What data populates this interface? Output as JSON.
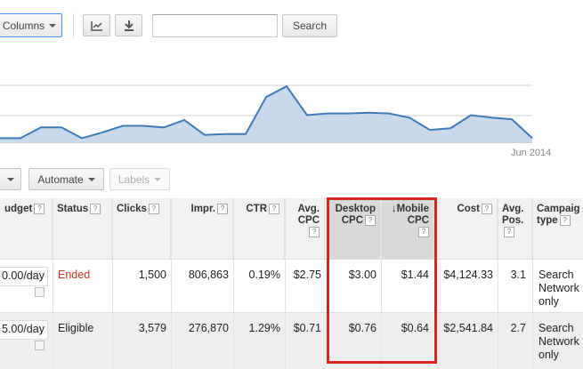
{
  "toolbar": {
    "columns_label": "Columns",
    "search_placeholder": "",
    "search_label": "Search"
  },
  "chart": {
    "x_label": "Jun 2014",
    "series": [
      5,
      5,
      18,
      18,
      5,
      12,
      20,
      20,
      18,
      27,
      9,
      10,
      10,
      55,
      68,
      33,
      35,
      35,
      36,
      35,
      30,
      15,
      17,
      33,
      30,
      28,
      5
    ],
    "y_max": 80
  },
  "action_bar": {
    "automate_label": "Automate",
    "labels_label": "Labels"
  },
  "table": {
    "headers": {
      "budget": "udget",
      "status": "Status",
      "clicks": "Clicks",
      "impr": "Impr.",
      "ctr": "CTR",
      "avg_cpc_1": "Avg.",
      "avg_cpc_2": "CPC",
      "desktop_1": "Desktop",
      "desktop_2": "CPC",
      "mobile_1": "Mobile",
      "mobile_2": "CPC",
      "cost": "Cost",
      "avg_pos_1": "Avg.",
      "avg_pos_2": "Pos.",
      "ctype_1": "Campaig",
      "ctype_2": "type",
      "help": "?",
      "sort_arrow": "↓"
    },
    "rows": [
      {
        "budget": "0.00/day",
        "status": "Ended",
        "clicks": "1,500",
        "impr": "806,863",
        "ctr": "0.19%",
        "avg_cpc": "$2.75",
        "desktop_cpc": "$3.00",
        "mobile_cpc": "$1.44",
        "cost": "$4,124.33",
        "avg_pos": "3.1",
        "ctype_1": "Search",
        "ctype_2": "Network",
        "ctype_3": "only"
      },
      {
        "budget": "5.00/day",
        "status": "Eligible",
        "clicks": "3,579",
        "impr": "276,870",
        "ctr": "1.29%",
        "avg_cpc": "$0.71",
        "desktop_cpc": "$0.76",
        "mobile_cpc": "$0.64",
        "cost": "$2,541.84",
        "avg_pos": "2.7",
        "ctype_1": "Search",
        "ctype_2": "Network",
        "ctype_3": "only"
      }
    ]
  },
  "colors": {
    "highlight_box": "#d7261e",
    "chart_fill": "#c7d9ea",
    "chart_line": "#3f7ab8"
  }
}
